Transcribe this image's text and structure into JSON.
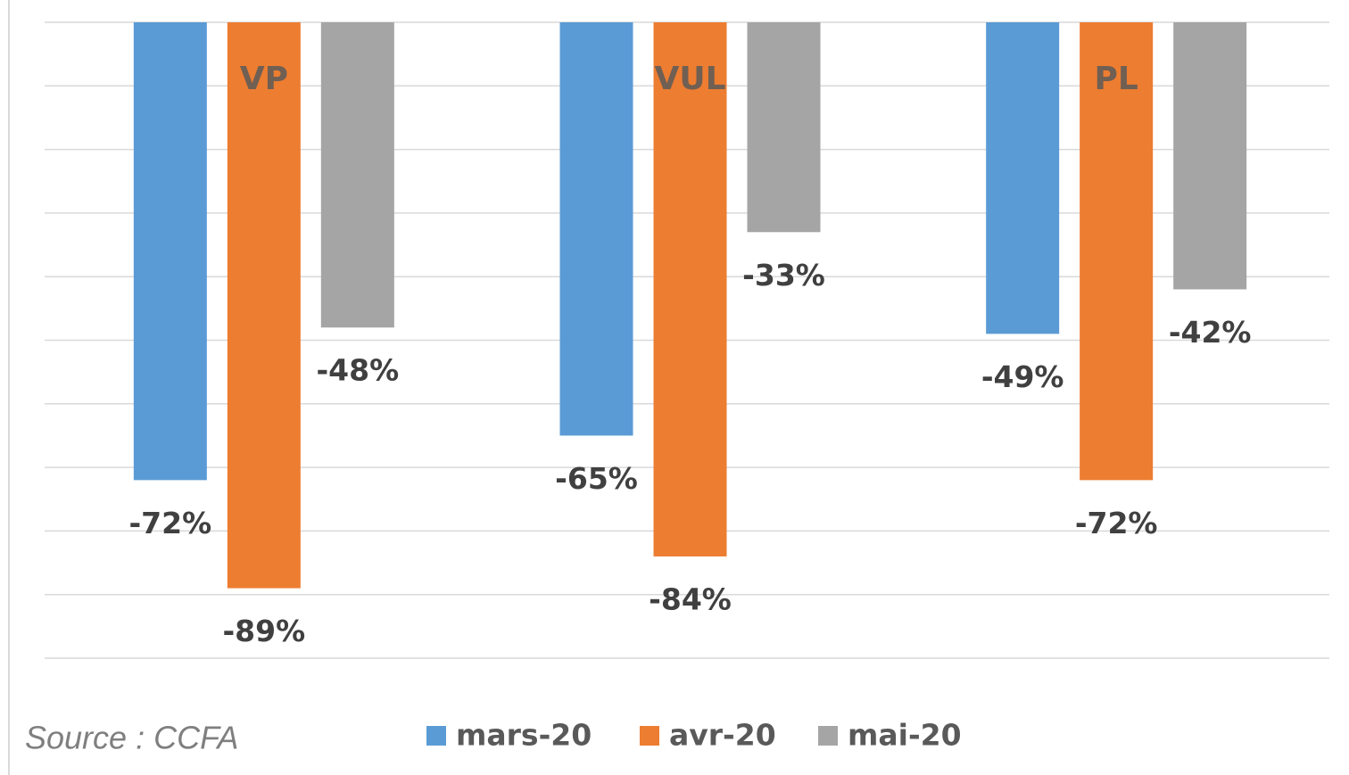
{
  "chart_data": {
    "type": "bar",
    "categories": [
      "VP",
      "VUL",
      "PL"
    ],
    "series": [
      {
        "name": "mars-20",
        "color": "#5b9bd5",
        "values": [
          -72,
          -65,
          -49
        ],
        "value_labels": [
          "-72%",
          "-65%",
          "-49%"
        ]
      },
      {
        "name": "avr-20",
        "color": "#ed7d31",
        "values": [
          -89,
          -84,
          -72
        ],
        "value_labels": [
          "-89%",
          "-84%",
          "-72%"
        ]
      },
      {
        "name": "mai-20",
        "color": "#a5a5a5",
        "values": [
          -48,
          -33,
          -42
        ],
        "value_labels": [
          "-48%",
          "-33%",
          "-42%"
        ]
      }
    ],
    "ylim": [
      -100,
      0
    ],
    "yticks": [
      0,
      -10,
      -20,
      -30,
      -40,
      -50,
      -60,
      -70,
      -80,
      -90,
      -100
    ],
    "grid": true,
    "legend": "bottom",
    "source": "Source : CCFA"
  }
}
